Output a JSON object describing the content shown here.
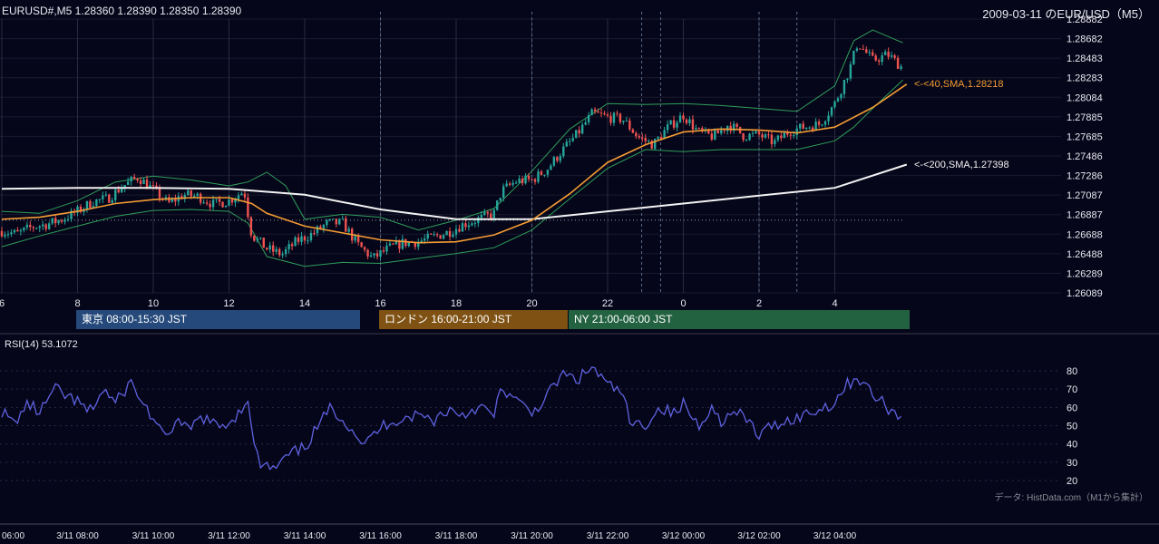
{
  "header": {
    "symbol_info": "EURUSD#,M5 1.28360 1.28390 1.28350 1.28390",
    "right_title": "2009-03-11 のEUR/USD（M5）"
  },
  "sessions": [
    {
      "label": "東京 08:00-15:30 JST",
      "color": "#24497a"
    },
    {
      "label": "ロンドン 16:00-21:00 JST",
      "color": "#7f5214"
    },
    {
      "label": "NY 21:00-06:00 JST",
      "color": "#236240"
    }
  ],
  "sma_labels": {
    "sma40": "<-<40,SMA,1.28218",
    "sma200": "<-<200,SMA,1.27398"
  },
  "rsi_label": "RSI(14) 53.1072",
  "footer_note": "データ: HistData.com（M1から集計）",
  "colors": {
    "background": "#06061a",
    "candle_up": "#26a69a",
    "candle_down": "#ef5350",
    "sma40": "#f39c33",
    "sma200": "#f2f2f2",
    "bollinger": "#2e9e5a",
    "rsi": "#5e62e0"
  },
  "chart_data": [
    {
      "type": "candlestick",
      "title": "EURUSD#,M5",
      "x_tick_labels": [
        "6",
        "8",
        "10",
        "12",
        "14",
        "16",
        "18",
        "20",
        "22",
        "0",
        "2",
        "4"
      ],
      "x_tick_hours": [
        6,
        8,
        10,
        12,
        14,
        16,
        18,
        20,
        22,
        24,
        26,
        28
      ],
      "x_range_hours": [
        6.0,
        29.0
      ],
      "ylim": [
        1.26089,
        1.28882
      ],
      "y_tick_labels": [
        "1.28882",
        "1.28682",
        "1.28483",
        "1.28283",
        "1.28084",
        "1.27885",
        "1.27685",
        "1.27486",
        "1.27286",
        "1.27087",
        "1.26887",
        "1.26688",
        "1.26488",
        "1.26289",
        "1.26089"
      ],
      "grid": true,
      "reference_line": 1.2683,
      "close_path": [
        [
          6.0,
          1.2672
        ],
        [
          6.4,
          1.2669
        ],
        [
          6.8,
          1.2676
        ],
        [
          7.2,
          1.2679
        ],
        [
          7.6,
          1.2684
        ],
        [
          8.0,
          1.2692
        ],
        [
          8.4,
          1.2702
        ],
        [
          8.8,
          1.2705
        ],
        [
          9.2,
          1.2718
        ],
        [
          9.6,
          1.2727
        ],
        [
          10.0,
          1.2714
        ],
        [
          10.4,
          1.27
        ],
        [
          10.8,
          1.2709
        ],
        [
          11.2,
          1.2707
        ],
        [
          11.6,
          1.2699
        ],
        [
          12.0,
          1.2703
        ],
        [
          12.4,
          1.2713
        ],
        [
          12.5,
          1.269
        ],
        [
          12.6,
          1.2668
        ],
        [
          13.0,
          1.2654
        ],
        [
          13.4,
          1.2648
        ],
        [
          13.8,
          1.2662
        ],
        [
          14.2,
          1.2669
        ],
        [
          14.6,
          1.268
        ],
        [
          15.0,
          1.268
        ],
        [
          15.4,
          1.2658
        ],
        [
          15.8,
          1.2644
        ],
        [
          16.2,
          1.2654
        ],
        [
          16.6,
          1.266
        ],
        [
          17.0,
          1.2661
        ],
        [
          17.4,
          1.2666
        ],
        [
          17.8,
          1.2671
        ],
        [
          18.2,
          1.2679
        ],
        [
          18.6,
          1.2684
        ],
        [
          19.0,
          1.269
        ],
        [
          19.2,
          1.2713
        ],
        [
          19.6,
          1.2723
        ],
        [
          20.0,
          1.2724
        ],
        [
          20.4,
          1.2735
        ],
        [
          20.8,
          1.2754
        ],
        [
          21.2,
          1.2771
        ],
        [
          21.6,
          1.2792
        ],
        [
          22.0,
          1.2788
        ],
        [
          22.4,
          1.2786
        ],
        [
          22.8,
          1.2768
        ],
        [
          23.2,
          1.276
        ],
        [
          23.6,
          1.2778
        ],
        [
          24.0,
          1.279
        ],
        [
          24.4,
          1.2773
        ],
        [
          24.8,
          1.2768
        ],
        [
          25.2,
          1.2781
        ],
        [
          25.6,
          1.2769
        ],
        [
          26.0,
          1.277
        ],
        [
          26.4,
          1.2762
        ],
        [
          26.8,
          1.2774
        ],
        [
          27.2,
          1.2778
        ],
        [
          27.6,
          1.2781
        ],
        [
          28.0,
          1.2802
        ],
        [
          28.4,
          1.2838
        ],
        [
          28.6,
          1.2864
        ],
        [
          29.0,
          1.2846
        ],
        [
          29.4,
          1.2852
        ],
        [
          29.8,
          1.2838
        ]
      ],
      "sma40": [
        [
          6.0,
          1.2684
        ],
        [
          7.0,
          1.2686
        ],
        [
          8.0,
          1.2692
        ],
        [
          9.0,
          1.27
        ],
        [
          10.0,
          1.2704
        ],
        [
          11.0,
          1.2706
        ],
        [
          12.0,
          1.2706
        ],
        [
          12.6,
          1.27
        ],
        [
          13.0,
          1.269
        ],
        [
          14.0,
          1.2677
        ],
        [
          15.0,
          1.267
        ],
        [
          16.0,
          1.2663
        ],
        [
          17.0,
          1.266
        ],
        [
          18.0,
          1.2661
        ],
        [
          19.0,
          1.2668
        ],
        [
          20.0,
          1.2683
        ],
        [
          21.0,
          1.271
        ],
        [
          22.0,
          1.2742
        ],
        [
          23.0,
          1.276
        ],
        [
          24.0,
          1.2773
        ],
        [
          25.0,
          1.2776
        ],
        [
          26.0,
          1.2775
        ],
        [
          27.0,
          1.2772
        ],
        [
          28.0,
          1.2778
        ],
        [
          29.0,
          1.2798
        ],
        [
          29.9,
          1.28218
        ]
      ],
      "sma200": [
        [
          6.0,
          1.2715
        ],
        [
          8.0,
          1.2716
        ],
        [
          10.0,
          1.2716
        ],
        [
          12.0,
          1.2715
        ],
        [
          14.0,
          1.2709
        ],
        [
          16.0,
          1.2694
        ],
        [
          18.0,
          1.2684
        ],
        [
          20.0,
          1.2684
        ],
        [
          22.0,
          1.2692
        ],
        [
          24.0,
          1.27
        ],
        [
          26.0,
          1.2708
        ],
        [
          28.0,
          1.2716
        ],
        [
          29.9,
          1.27398
        ]
      ],
      "bollinger_upper": [
        [
          6.0,
          1.2692
        ],
        [
          7.0,
          1.269
        ],
        [
          8.0,
          1.2703
        ],
        [
          9.0,
          1.2722
        ],
        [
          10.0,
          1.2728
        ],
        [
          11.0,
          1.2724
        ],
        [
          12.0,
          1.2718
        ],
        [
          12.5,
          1.2722
        ],
        [
          13.0,
          1.2732
        ],
        [
          13.5,
          1.2718
        ],
        [
          14.0,
          1.2684
        ],
        [
          15.0,
          1.2689
        ],
        [
          16.0,
          1.2686
        ],
        [
          17.0,
          1.2673
        ],
        [
          18.0,
          1.2683
        ],
        [
          19.0,
          1.2695
        ],
        [
          20.0,
          1.2733
        ],
        [
          21.0,
          1.2776
        ],
        [
          22.0,
          1.2802
        ],
        [
          23.0,
          1.2801
        ],
        [
          24.0,
          1.2802
        ],
        [
          25.0,
          1.28
        ],
        [
          26.0,
          1.2797
        ],
        [
          27.0,
          1.2794
        ],
        [
          28.0,
          1.282
        ],
        [
          28.5,
          1.2866
        ],
        [
          29.0,
          1.2877
        ],
        [
          29.8,
          1.2864
        ]
      ],
      "bollinger_lower": [
        [
          6.0,
          1.2656
        ],
        [
          7.0,
          1.2667
        ],
        [
          8.0,
          1.2677
        ],
        [
          9.0,
          1.2687
        ],
        [
          10.0,
          1.2693
        ],
        [
          11.0,
          1.2694
        ],
        [
          12.0,
          1.2692
        ],
        [
          12.5,
          1.268
        ],
        [
          13.0,
          1.2646
        ],
        [
          14.0,
          1.2636
        ],
        [
          15.0,
          1.264
        ],
        [
          16.0,
          1.2639
        ],
        [
          17.0,
          1.2644
        ],
        [
          18.0,
          1.2649
        ],
        [
          19.0,
          1.2655
        ],
        [
          20.0,
          1.2673
        ],
        [
          21.0,
          1.2705
        ],
        [
          22.0,
          1.2736
        ],
        [
          23.0,
          1.2755
        ],
        [
          24.0,
          1.2753
        ],
        [
          25.0,
          1.2755
        ],
        [
          26.0,
          1.2755
        ],
        [
          27.0,
          1.2755
        ],
        [
          28.0,
          1.2764
        ],
        [
          28.5,
          1.2778
        ],
        [
          29.0,
          1.2797
        ],
        [
          29.8,
          1.2826
        ]
      ]
    },
    {
      "type": "line",
      "title": "RSI(14) 53.1072",
      "ylim": [
        20,
        80
      ],
      "y_tick_labels": [
        "80",
        "70",
        "60",
        "50",
        "40",
        "30",
        "20"
      ],
      "x_tick_labels": [
        "06:00",
        "3/11 08:00",
        "3/11 10:00",
        "3/11 12:00",
        "3/11 14:00",
        "3/11 16:00",
        "3/11 18:00",
        "3/11 20:00",
        "3/11 22:00",
        "3/12 00:00",
        "3/12 02:00",
        "3/12 04:00"
      ],
      "x_tick_hours": [
        6,
        8,
        10,
        12,
        14,
        16,
        18,
        20,
        22,
        24,
        26,
        28
      ],
      "grid": true,
      "values_path": [
        [
          6.0,
          58
        ],
        [
          6.3,
          51
        ],
        [
          6.7,
          62
        ],
        [
          7.0,
          57
        ],
        [
          7.4,
          70
        ],
        [
          7.7,
          66
        ],
        [
          8.0,
          63
        ],
        [
          8.3,
          57
        ],
        [
          8.7,
          70
        ],
        [
          9.0,
          62
        ],
        [
          9.4,
          74
        ],
        [
          9.7,
          63
        ],
        [
          10.0,
          54
        ],
        [
          10.3,
          42
        ],
        [
          10.6,
          53
        ],
        [
          10.9,
          47
        ],
        [
          11.3,
          55
        ],
        [
          11.7,
          49
        ],
        [
          12.0,
          52
        ],
        [
          12.3,
          58
        ],
        [
          12.5,
          66
        ],
        [
          12.6,
          45
        ],
        [
          12.8,
          29
        ],
        [
          13.2,
          26
        ],
        [
          13.6,
          34
        ],
        [
          14.0,
          38
        ],
        [
          14.3,
          48
        ],
        [
          14.7,
          60
        ],
        [
          15.0,
          54
        ],
        [
          15.3,
          47
        ],
        [
          15.6,
          39
        ],
        [
          15.8,
          45
        ],
        [
          16.2,
          52
        ],
        [
          16.6,
          54
        ],
        [
          17.0,
          56
        ],
        [
          17.4,
          53
        ],
        [
          17.8,
          59
        ],
        [
          18.2,
          56
        ],
        [
          18.6,
          61
        ],
        [
          19.0,
          55
        ],
        [
          19.2,
          71
        ],
        [
          19.6,
          63
        ],
        [
          20.0,
          57
        ],
        [
          20.4,
          66
        ],
        [
          20.8,
          78
        ],
        [
          21.2,
          75
        ],
        [
          21.6,
          82
        ],
        [
          22.0,
          72
        ],
        [
          22.4,
          68
        ],
        [
          22.6,
          50
        ],
        [
          23.0,
          51
        ],
        [
          23.4,
          60
        ],
        [
          23.8,
          56
        ],
        [
          24.0,
          62
        ],
        [
          24.4,
          50
        ],
        [
          24.7,
          60
        ],
        [
          25.0,
          53
        ],
        [
          25.4,
          57
        ],
        [
          25.8,
          51
        ],
        [
          26.0,
          44
        ],
        [
          26.4,
          51
        ],
        [
          26.8,
          53
        ],
        [
          27.2,
          56
        ],
        [
          27.6,
          59
        ],
        [
          28.0,
          63
        ],
        [
          28.3,
          72
        ],
        [
          28.6,
          77
        ],
        [
          29.0,
          67
        ],
        [
          29.4,
          60
        ],
        [
          29.8,
          53
        ]
      ]
    }
  ]
}
